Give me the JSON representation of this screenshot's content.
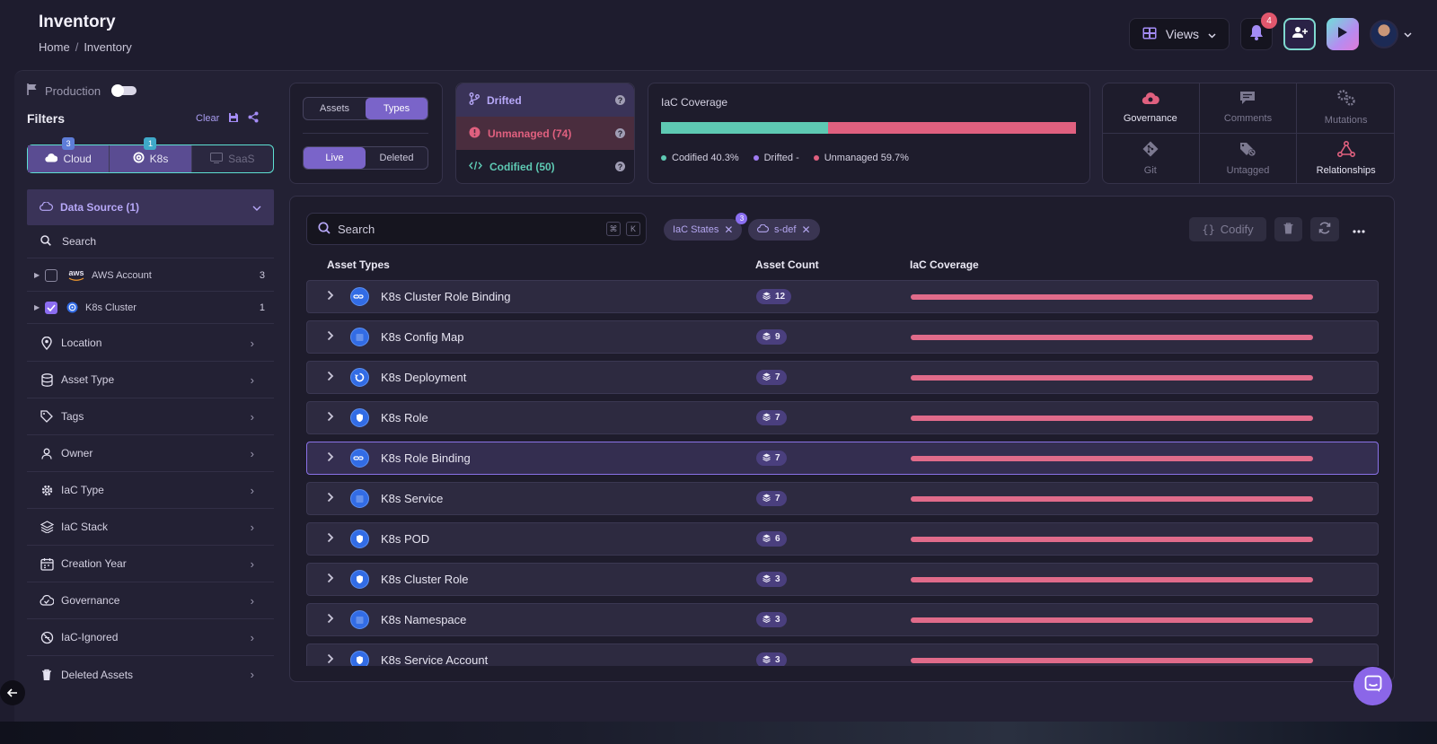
{
  "header": {
    "title": "Inventory",
    "breadcrumb": [
      "Home",
      "/",
      "Inventory"
    ],
    "views_label": "Views",
    "notification_count": "4"
  },
  "sidebar": {
    "production_label": "Production",
    "filters_title": "Filters",
    "clear_label": "Clear",
    "provider_tabs": [
      {
        "label": "Cloud",
        "badge": "3"
      },
      {
        "label": "K8s",
        "badge": "1"
      },
      {
        "label": "SaaS",
        "badge": ""
      }
    ],
    "data_source": {
      "title": "Data Source (1)",
      "search_placeholder": "Search",
      "items": [
        {
          "label": "AWS Account",
          "count": "3",
          "checked": false,
          "logo": "aws"
        },
        {
          "label": "K8s Cluster",
          "count": "1",
          "checked": true
        }
      ]
    },
    "filters": [
      {
        "label": "Location",
        "icon": "location-pin-icon"
      },
      {
        "label": "Asset Type",
        "icon": "database-icon"
      },
      {
        "label": "Tags",
        "icon": "tag-icon"
      },
      {
        "label": "Owner",
        "icon": "user-icon"
      },
      {
        "label": "IaC Type",
        "icon": "gear-icon"
      },
      {
        "label": "IaC Stack",
        "icon": "layers-icon"
      },
      {
        "label": "Creation Year",
        "icon": "calendar-icon"
      },
      {
        "label": "Governance",
        "icon": "cloud-check-icon"
      },
      {
        "label": "IaC-Ignored",
        "icon": "ignored-icon"
      },
      {
        "label": "Deleted Assets",
        "icon": "trash-icon"
      }
    ]
  },
  "view_toggles": {
    "assets_label": "Assets",
    "types_label": "Types",
    "live_label": "Live",
    "deleted_label": "Deleted"
  },
  "status": {
    "drifted": "Drifted",
    "unmanaged": "Unmanaged (74)",
    "codified": "Codified (50)"
  },
  "coverage": {
    "title": "IaC Coverage",
    "codified_pct": 40.3,
    "unmanaged_pct": 59.7,
    "legend": [
      {
        "label": "Codified 40.3%",
        "color": "#5ec9b3"
      },
      {
        "label": "Drifted -",
        "color": "#9f7bf2"
      },
      {
        "label": "Unmanaged 59.7%",
        "color": "#e0607f"
      }
    ]
  },
  "actions_grid": [
    {
      "label": "Governance",
      "icon": "governance-cloud-icon",
      "active": true
    },
    {
      "label": "Comments",
      "icon": "comment-icon",
      "active": false
    },
    {
      "label": "Mutations",
      "icon": "mutations-gears-icon",
      "active": false
    },
    {
      "label": "Git",
      "icon": "git-icon",
      "active": false
    },
    {
      "label": "Untagged",
      "icon": "untagged-icon",
      "active": false
    },
    {
      "label": "Relationships",
      "icon": "relationships-icon",
      "active": true
    }
  ],
  "table": {
    "search_placeholder": "Search",
    "shortcut_keys": [
      "⌘",
      "K"
    ],
    "chips": [
      {
        "label": "IaC States",
        "badge": "3"
      },
      {
        "label": "s-def",
        "badge": ""
      }
    ],
    "codify_label": "Codify",
    "columns": [
      "Asset Types",
      "Asset Count",
      "IaC Coverage"
    ],
    "rows": [
      {
        "name": "K8s Cluster Role Binding",
        "count": "12",
        "coverage": 0
      },
      {
        "name": "K8s Config Map",
        "count": "9",
        "coverage": 0
      },
      {
        "name": "K8s Deployment",
        "count": "7",
        "coverage": 0
      },
      {
        "name": "K8s Role",
        "count": "7",
        "coverage": 0
      },
      {
        "name": "K8s Role Binding",
        "count": "7",
        "coverage": 0,
        "selected": true
      },
      {
        "name": "K8s Service",
        "count": "7",
        "coverage": 0
      },
      {
        "name": "K8s POD",
        "count": "6",
        "coverage": 0
      },
      {
        "name": "K8s Cluster Role",
        "count": "3",
        "coverage": 0
      },
      {
        "name": "K8s Namespace",
        "count": "3",
        "coverage": 0
      },
      {
        "name": "K8s Service Account",
        "count": "3",
        "coverage": 0
      }
    ]
  },
  "colors": {
    "accent": "#8b6df0",
    "codified": "#5ec9b3",
    "unmanaged": "#e0607f",
    "k8s_blue": "#326ce5"
  }
}
